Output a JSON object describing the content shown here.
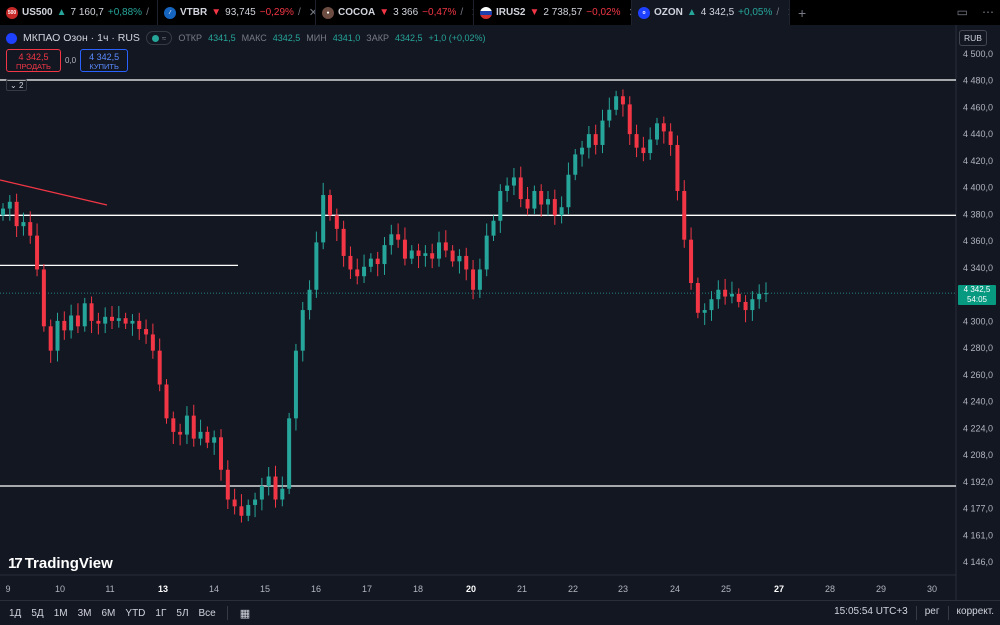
{
  "tabs": [
    {
      "badge_text": "500",
      "badge_color": "#c62828",
      "symbol": "US500",
      "dir": "up",
      "arrow": "▲",
      "price": "7 160,7",
      "change": "+0,88%",
      "extra": "/"
    },
    {
      "badge_text": "",
      "badge_color": "#1565c0",
      "symbol": "VTBR",
      "dir": "dn",
      "arrow": "▼",
      "price": "93,745",
      "change": "−0,29%",
      "extra": "/"
    },
    {
      "badge_text": "",
      "badge_color": "#6d4c41",
      "symbol": "COCOA",
      "dir": "dn",
      "arrow": "▼",
      "price": "3 366",
      "change": "−0,47%",
      "extra": "/"
    },
    {
      "badge_text": "",
      "badge_color": "#e0e0e0",
      "symbol": "IRUS2",
      "dir": "dn",
      "arrow": "▼",
      "price": "2 738,57",
      "change": "−0,02%",
      "extra": ""
    },
    {
      "badge_text": "",
      "badge_color": "#1e40ff",
      "symbol": "OZON",
      "dir": "up",
      "arrow": "▲",
      "price": "4 342,5",
      "change": "+0,05%",
      "extra": "/"
    }
  ],
  "legend": {
    "title": "МКПАО Озон · 1ч · RUS",
    "open_label": "ОТКР",
    "open": "4341,5",
    "high_label": "МАКС",
    "high": "4342,5",
    "low_label": "МИН",
    "low": "4341,0",
    "close_label": "ЗАКР",
    "close": "4342,5",
    "change": "+1,0 (+0,02%)"
  },
  "trade": {
    "sell_price": "4 342,5",
    "sell_label": "ПРОДАТЬ",
    "spread": "0,0",
    "buy_price": "4 342,5",
    "buy_label": "КУПИТЬ"
  },
  "collapse_label": "2",
  "currency": "RUB",
  "last_price": "4 342,5",
  "countdown": "54:05",
  "logo_text": "TradingView",
  "colors": {
    "up": "#26a69a",
    "down": "#f23645",
    "bg": "#131722",
    "line": "#ffffff",
    "trend": "#f23645"
  },
  "chart_data": {
    "type": "candlestick",
    "y_ticks": [
      "4 500,0",
      "4 480,0",
      "4 460,0",
      "4 440,0",
      "4 420,0",
      "4 400,0",
      "4 380,0",
      "4 360,0",
      "4 340,0",
      "4 320,0",
      "4 300,0",
      "4 280,0",
      "4 260,0",
      "4 240,0",
      "4 224,0",
      "4 208,0",
      "4 192,0",
      "4 177,0",
      "4 161,0",
      "4 146,0"
    ],
    "x_ticks": [
      "9",
      "10",
      "11",
      "13",
      "14",
      "15",
      "16",
      "17",
      "18",
      "20",
      "21",
      "22",
      "23",
      "24",
      "25",
      "27",
      "28",
      "29",
      "30"
    ],
    "x_ticks_bold": [
      "13",
      "20",
      "27"
    ],
    "horizontal_levels": [
      4500,
      4400,
      4363,
      4200
    ],
    "close_path": [
      4405,
      4410,
      4392,
      4395,
      4385,
      4360,
      4318,
      4300,
      4322,
      4315,
      4326,
      4318,
      4335,
      4322,
      4320,
      4325,
      4322,
      4324,
      4320,
      4322,
      4316,
      4312,
      4300,
      4275,
      4250,
      4240,
      4238,
      4252,
      4235,
      4240,
      4232,
      4236,
      4212,
      4190,
      4185,
      4178,
      4186,
      4190,
      4200,
      4207,
      4190,
      4198,
      4250,
      4300,
      4330,
      4345,
      4380,
      4415,
      4400,
      4390,
      4370,
      4360,
      4355,
      4362,
      4368,
      4364,
      4378,
      4386,
      4382,
      4368,
      4374,
      4370,
      4372,
      4368,
      4380,
      4374,
      4366,
      4370,
      4360,
      4345,
      4360,
      4385,
      4396,
      4418,
      4422,
      4428,
      4412,
      4405,
      4418,
      4408,
      4412,
      4400,
      4406,
      4430,
      4445,
      4450,
      4460,
      4452,
      4470,
      4478,
      4488,
      4482,
      4460,
      4450,
      4446,
      4456,
      4468,
      4462,
      4452,
      4418,
      4382,
      4350,
      4328,
      4330,
      4338,
      4345,
      4340,
      4342,
      4336,
      4330,
      4338,
      4342,
      4342.5
    ]
  },
  "bottom": {
    "ranges": [
      "1Д",
      "5Д",
      "1М",
      "3М",
      "6М",
      "YTD",
      "1Г",
      "5Л",
      "Все"
    ],
    "time": "15:05:54 UTC+3",
    "session": "рег",
    "adjust": "коррект."
  }
}
